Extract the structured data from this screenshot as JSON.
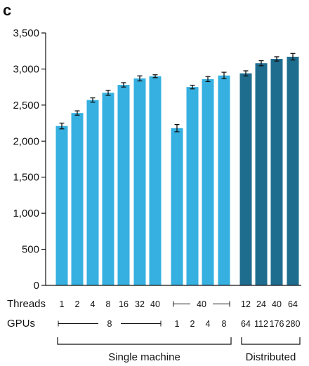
{
  "panel_label": "c",
  "chart_data": {
    "type": "bar",
    "ylim": [
      0,
      3500
    ],
    "yticks": [
      0,
      500,
      1000,
      1500,
      2000,
      2500,
      3000,
      3500
    ],
    "ytick_labels": [
      "0",
      "500",
      "1,000",
      "1,500",
      "2,000",
      "2,500",
      "3,000",
      "3,500"
    ],
    "bars": [
      {
        "value": 2210,
        "err": 40,
        "group": "single"
      },
      {
        "value": 2390,
        "err": 30,
        "group": "single"
      },
      {
        "value": 2570,
        "err": 30,
        "group": "single"
      },
      {
        "value": 2670,
        "err": 35,
        "group": "single"
      },
      {
        "value": 2780,
        "err": 30,
        "group": "single"
      },
      {
        "value": 2870,
        "err": 35,
        "group": "single"
      },
      {
        "value": 2900,
        "err": 20,
        "group": "single"
      },
      {
        "value": 2180,
        "err": 50,
        "group": "single"
      },
      {
        "value": 2750,
        "err": 25,
        "group": "single"
      },
      {
        "value": 2860,
        "err": 35,
        "group": "single"
      },
      {
        "value": 2910,
        "err": 45,
        "group": "single"
      },
      {
        "value": 2940,
        "err": 35,
        "group": "distributed"
      },
      {
        "value": 3080,
        "err": 35,
        "group": "distributed"
      },
      {
        "value": 3140,
        "err": 30,
        "group": "distributed"
      },
      {
        "value": 3170,
        "err": 45,
        "group": "distributed"
      }
    ],
    "rows": {
      "threads": {
        "label": "Threads",
        "values": [
          "1",
          "2",
          "4",
          "8",
          "16",
          "32",
          "40",
          "",
          "",
          "",
          "",
          "12",
          "24",
          "40",
          "64"
        ],
        "span": {
          "from": 7,
          "to": 10,
          "text": "40"
        }
      },
      "gpus": {
        "label": "GPUs",
        "values": [
          "",
          "",
          "",
          "",
          "",
          "",
          "",
          "1",
          "2",
          "4",
          "8",
          "64",
          "112",
          "176",
          "280"
        ],
        "span": {
          "from": 0,
          "to": 6,
          "text": "8"
        }
      }
    },
    "groups": [
      {
        "label": "Single machine",
        "from": 0,
        "to": 10
      },
      {
        "label": "Distributed",
        "from": 11,
        "to": 14
      }
    ],
    "colors": {
      "single": "#35b0e0",
      "distributed": "#1e6d8f",
      "axis": "#111111"
    }
  }
}
